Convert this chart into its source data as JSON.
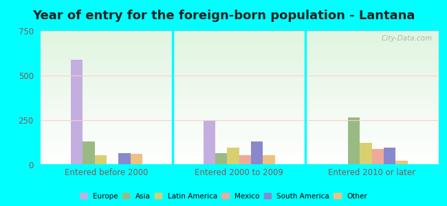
{
  "title": "Year of entry for the foreign-born population - Lantana",
  "categories": [
    "Entered before 2000",
    "Entered 2000 to 2009",
    "Entered 2010 or later"
  ],
  "series": {
    "Europe": [
      590,
      245,
      0
    ],
    "Asia": [
      130,
      65,
      265
    ],
    "Latin America": [
      55,
      95,
      125
    ],
    "Mexico": [
      0,
      55,
      90
    ],
    "South America": [
      65,
      130,
      95
    ],
    "Other": [
      60,
      55,
      25
    ]
  },
  "colors": {
    "Europe": "#c4aee0",
    "Asia": "#9aba84",
    "Latin America": "#d8d070",
    "Mexico": "#f0a898",
    "South America": "#8888cc",
    "Other": "#f0c080"
  },
  "ylim": [
    0,
    750
  ],
  "yticks": [
    0,
    250,
    500,
    750
  ],
  "outer_background": "#00ffff",
  "title_fontsize": 13,
  "tick_color": "#885555",
  "watermark": "City-Data.com"
}
